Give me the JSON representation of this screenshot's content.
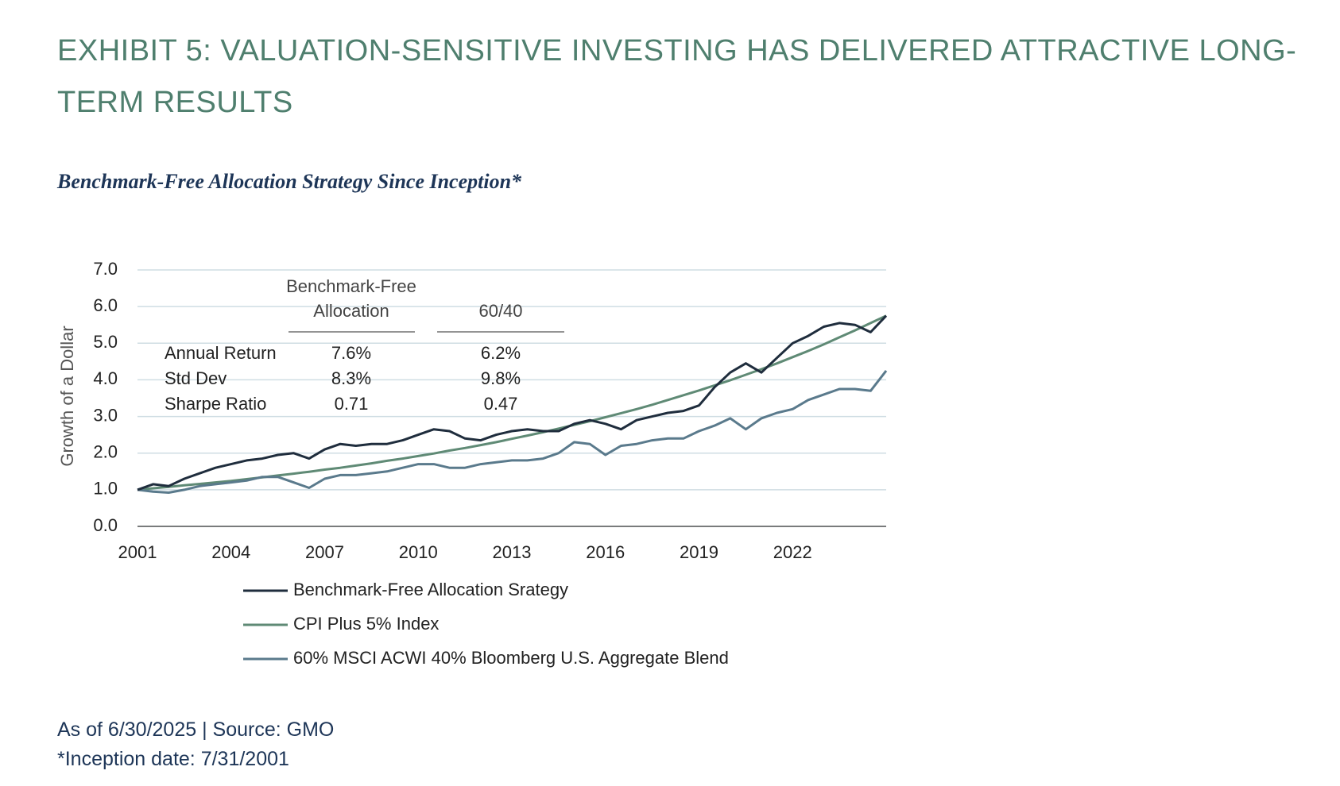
{
  "title": "EXHIBIT 5: VALUATION-SENSITIVE INVESTING HAS DELIVERED ATTRACTIVE LONG-TERM RESULTS",
  "chart_data": {
    "type": "line",
    "title": "Benchmark-Free Allocation Strategy Since Inception*",
    "y_label": "Growth of a Dollar",
    "x": [
      2001,
      2001.5,
      2002,
      2002.5,
      2003,
      2003.5,
      2004,
      2004.5,
      2005,
      2005.5,
      2006,
      2006.5,
      2007,
      2007.5,
      2008,
      2008.5,
      2009,
      2009.5,
      2010,
      2010.5,
      2011,
      2011.5,
      2012,
      2012.5,
      2013,
      2013.5,
      2014,
      2014.5,
      2015,
      2015.5,
      2016,
      2016.5,
      2017,
      2017.5,
      2018,
      2018.5,
      2019,
      2019.5,
      2020,
      2020.5,
      2021,
      2021.5,
      2022,
      2022.5,
      2023,
      2023.5,
      2024,
      2024.5,
      2025
    ],
    "series": [
      {
        "name": "Benchmark-Free Allocation Srategy",
        "color": "#1f2d3d",
        "values": [
          1.0,
          1.15,
          1.1,
          1.3,
          1.45,
          1.6,
          1.7,
          1.8,
          1.85,
          1.95,
          2.0,
          1.85,
          2.1,
          2.25,
          2.2,
          2.25,
          2.25,
          2.35,
          2.5,
          2.65,
          2.6,
          2.4,
          2.35,
          2.5,
          2.6,
          2.65,
          2.6,
          2.6,
          2.8,
          2.9,
          2.8,
          2.65,
          2.9,
          3.0,
          3.1,
          3.15,
          3.3,
          3.8,
          4.2,
          4.45,
          4.2,
          4.6,
          5.0,
          5.2,
          5.45,
          5.55,
          5.5,
          5.3,
          5.75
        ]
      },
      {
        "name": "CPI Plus 5% Index",
        "color": "#5f8a75",
        "values": [
          1.0,
          1.04,
          1.08,
          1.12,
          1.16,
          1.2,
          1.24,
          1.29,
          1.34,
          1.39,
          1.44,
          1.49,
          1.55,
          1.6,
          1.66,
          1.72,
          1.79,
          1.85,
          1.92,
          1.99,
          2.07,
          2.14,
          2.22,
          2.3,
          2.39,
          2.48,
          2.57,
          2.67,
          2.77,
          2.87,
          2.98,
          3.09,
          3.2,
          3.32,
          3.45,
          3.58,
          3.71,
          3.85,
          3.99,
          4.14,
          4.29,
          4.45,
          4.62,
          4.79,
          4.97,
          5.16,
          5.35,
          5.55,
          5.75
        ]
      },
      {
        "name": "60% MSCI ACWI 40% Bloomberg U.S. Aggregate Blend",
        "color": "#5a7a8c",
        "values": [
          1.0,
          0.95,
          0.92,
          1.0,
          1.1,
          1.15,
          1.2,
          1.25,
          1.35,
          1.35,
          1.2,
          1.05,
          1.3,
          1.4,
          1.4,
          1.45,
          1.5,
          1.6,
          1.7,
          1.7,
          1.6,
          1.6,
          1.7,
          1.75,
          1.8,
          1.8,
          1.85,
          2.0,
          2.3,
          2.25,
          1.95,
          2.2,
          2.25,
          2.35,
          2.4,
          2.4,
          2.6,
          2.75,
          2.95,
          2.65,
          2.95,
          3.1,
          3.2,
          3.45,
          3.6,
          3.75,
          3.75,
          3.7,
          4.25
        ]
      }
    ],
    "xlim": [
      2001,
      2025
    ],
    "xticks": [
      2001,
      2004,
      2007,
      2010,
      2013,
      2016,
      2019,
      2022
    ],
    "ylim": [
      0,
      7
    ],
    "yticks": [
      {
        "value": 0,
        "label": "0.0"
      },
      {
        "value": 1,
        "label": "1.0"
      },
      {
        "value": 2,
        "label": "2.0"
      },
      {
        "value": 3,
        "label": "3.0"
      },
      {
        "value": 4,
        "label": "4.0"
      },
      {
        "value": 5,
        "label": "5.0"
      },
      {
        "value": 6,
        "label": "6.0"
      },
      {
        "value": 7,
        "label": "7.0"
      }
    ],
    "grid": true,
    "legend": "bottom",
    "stats_table": {
      "columns": [
        [
          "Benchmark-Free",
          "Allocation"
        ],
        [
          "60/40"
        ]
      ],
      "rows": [
        [
          "Annual Return",
          "7.6%",
          "6.2%"
        ],
        [
          "Std Dev",
          "8.3%",
          "9.8%"
        ],
        [
          "Sharpe Ratio",
          "0.71",
          "0.47"
        ]
      ]
    }
  },
  "footnotes": [
    "As of 6/30/2025 | Source: GMO",
    "*Inception date: 7/31/2001"
  ]
}
